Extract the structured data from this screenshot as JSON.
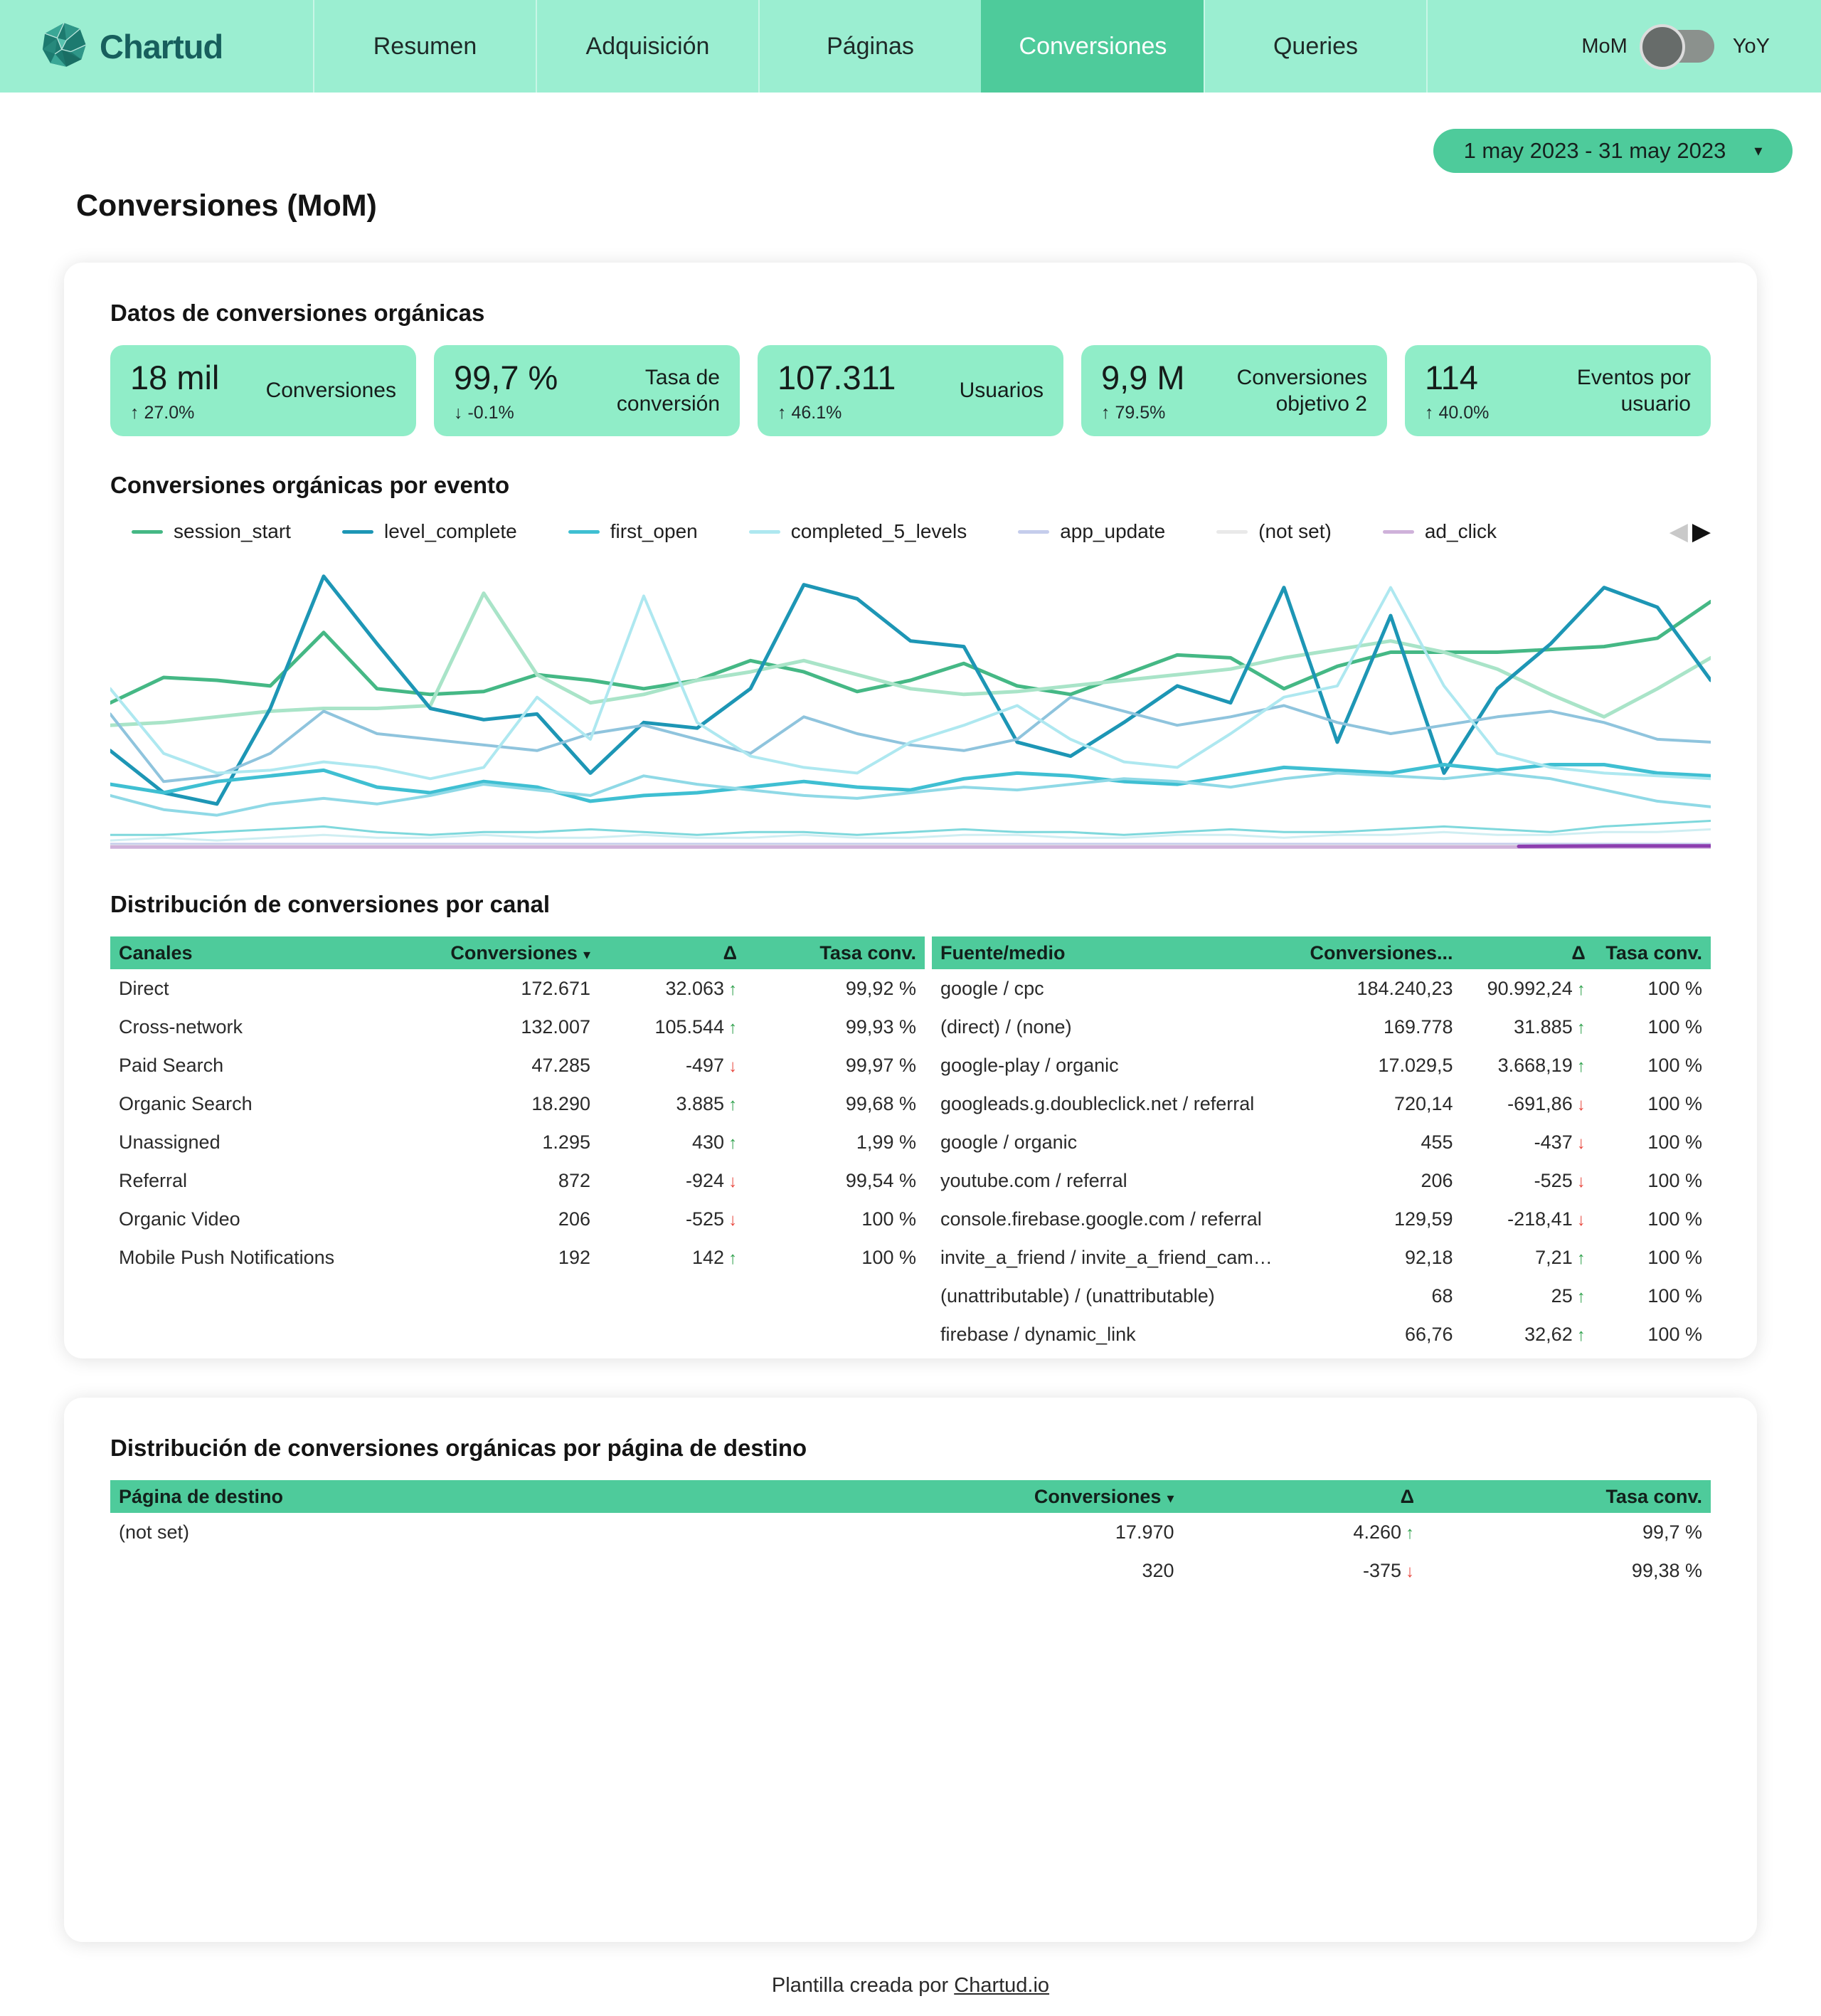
{
  "nav": {
    "brand": "Chartud",
    "tabs": [
      {
        "label": "Resumen",
        "active": false
      },
      {
        "label": "Adquisición",
        "active": false
      },
      {
        "label": "Páginas",
        "active": false
      },
      {
        "label": "Conversiones",
        "active": true
      },
      {
        "label": "Queries",
        "active": false
      }
    ],
    "toggle": {
      "left_label": "MoM",
      "right_label": "YoY",
      "selected": "MoM"
    }
  },
  "filters": {
    "date_range": "1 may 2023 - 31 may 2023"
  },
  "page_title": "Conversiones (MoM)",
  "sections": {
    "kpi_title": "Datos de conversiones orgánicas",
    "chart_title": "Conversiones orgánicas por evento",
    "channel_title": "Distribución de conversiones por canal",
    "landing_title": "Distribución de conversiones orgánicas por página de destino"
  },
  "kpis": [
    {
      "value": "18 mil",
      "delta": "27.0%",
      "direction": "up",
      "label": "Conversiones"
    },
    {
      "value": "99,7 %",
      "delta": "-0.1%",
      "direction": "down",
      "label": "Tasa de conversión"
    },
    {
      "value": "107.311",
      "delta": "46.1%",
      "direction": "up",
      "label": "Usuarios"
    },
    {
      "value": "9,9 M",
      "delta": "79.5%",
      "direction": "up",
      "label": "Conversiones objetivo 2"
    },
    {
      "value": "114",
      "delta": "40.0%",
      "direction": "up",
      "label": "Eventos por usuario"
    }
  ],
  "chart_data": {
    "type": "line",
    "title": "Conversiones orgánicas por evento",
    "x_description": "Días del periodo 1 may 2023 - 31 may 2023 (eje oculto)",
    "grid": false,
    "axes_hidden": true,
    "ylim": [
      0,
      100
    ],
    "legend_position": "top",
    "legend": [
      {
        "label": "session_start",
        "color": "#45b885"
      },
      {
        "label": "level_complete",
        "color": "#1d96b5"
      },
      {
        "label": "first_open",
        "color": "#3fbfd2"
      },
      {
        "label": "completed_5_levels",
        "color": "#aee8f0"
      },
      {
        "label": "app_update",
        "color": "#c5cdec"
      },
      {
        "label": "(not set)",
        "color": "#e9e9e9"
      },
      {
        "label": "ad_click",
        "color": "#cfb2da"
      }
    ],
    "series": [
      {
        "name": "session_start",
        "color": "#45b885",
        "width": 5,
        "values": [
          52,
          61,
          60,
          58,
          77,
          57,
          55,
          56,
          62,
          60,
          57,
          60,
          67,
          63,
          56,
          60,
          66,
          58,
          55,
          62,
          69,
          68,
          57,
          65,
          70,
          70,
          70,
          71,
          72,
          75,
          88
        ]
      },
      {
        "name": "session_start (prev)",
        "color": "#a9e4c8",
        "width": 5,
        "values": [
          44,
          45,
          47,
          49,
          50,
          50,
          51,
          91,
          62,
          52,
          55,
          60,
          63,
          67,
          62,
          57,
          55,
          56,
          58,
          60,
          62,
          64,
          68,
          71,
          74,
          70,
          64,
          55,
          47,
          57,
          68
        ]
      },
      {
        "name": "level_complete",
        "color": "#1d96b5",
        "width": 5,
        "values": [
          35,
          20,
          16,
          50,
          97,
          73,
          50,
          46,
          48,
          27,
          45,
          43,
          57,
          94,
          89,
          74,
          72,
          38,
          33,
          45,
          58,
          52,
          93,
          38,
          83,
          27,
          57,
          73,
          93,
          86,
          60
        ]
      },
      {
        "name": "level_complete (prev)",
        "color": "#8fc4dd",
        "width": 4,
        "values": [
          48,
          24,
          26,
          34,
          49,
          41,
          39,
          37,
          35,
          41,
          44,
          39,
          34,
          47,
          41,
          37,
          35,
          39,
          54,
          49,
          44,
          47,
          51,
          45,
          41,
          44,
          47,
          49,
          45,
          39,
          38
        ]
      },
      {
        "name": "first_open",
        "color": "#3fbfd2",
        "width": 5,
        "values": [
          23,
          20,
          24,
          26,
          28,
          22,
          20,
          24,
          22,
          17,
          19,
          20,
          22,
          24,
          22,
          21,
          25,
          27,
          26,
          24,
          23,
          26,
          29,
          28,
          27,
          30,
          28,
          30,
          30,
          27,
          26
        ]
      },
      {
        "name": "first_open (prev)",
        "color": "#8fd9e6",
        "width": 4,
        "values": [
          19,
          14,
          12,
          16,
          18,
          16,
          19,
          23,
          21,
          19,
          26,
          23,
          21,
          19,
          18,
          20,
          22,
          21,
          23,
          25,
          24,
          22,
          25,
          27,
          26,
          25,
          27,
          25,
          21,
          17,
          15
        ]
      },
      {
        "name": "completed_5_levels",
        "color": "#aee8f0",
        "width": 4,
        "values": [
          57,
          34,
          27,
          28,
          31,
          29,
          25,
          29,
          54,
          39,
          90,
          45,
          33,
          29,
          27,
          38,
          44,
          51,
          39,
          31,
          29,
          41,
          54,
          58,
          93,
          58,
          34,
          29,
          27,
          26,
          25
        ]
      },
      {
        "name": "completed_5_levels (prev)",
        "color": "#7fd8dc",
        "width": 3,
        "values": [
          5,
          5,
          6,
          7,
          8,
          6,
          5,
          6,
          6,
          7,
          6,
          5,
          6,
          6,
          5,
          6,
          7,
          6,
          6,
          5,
          6,
          7,
          6,
          6,
          7,
          8,
          7,
          6,
          8,
          9,
          10
        ]
      },
      {
        "name": "otros_eventos",
        "color": "#cfeef2",
        "width": 3,
        "values": [
          3,
          4,
          3,
          4,
          5,
          4,
          4,
          5,
          4,
          4,
          5,
          4,
          4,
          5,
          4,
          4,
          5,
          5,
          4,
          4,
          5,
          5,
          4,
          5,
          5,
          6,
          5,
          5,
          6,
          6,
          7
        ]
      },
      {
        "name": "app_update",
        "color": "#c5cdec",
        "width": 3,
        "values": [
          1.8,
          1.8
        ]
      },
      {
        "name": "(not set)",
        "color": "#e9e9e9",
        "width": 3,
        "values": [
          1.2,
          1.2
        ]
      },
      {
        "name": "ad_click",
        "color": "#cfb2da",
        "width": 5,
        "values": [
          0.7,
          0.7
        ]
      },
      {
        "name": "ad_click (final)",
        "color": "#8d3daf",
        "width": 5,
        "span": [
          0.88,
          1.0
        ],
        "values": [
          0.9,
          1.1,
          1.1
        ]
      }
    ],
    "pager": {
      "prev_enabled": false,
      "next_enabled": true
    }
  },
  "channel_table": {
    "headers": [
      "Canales",
      "Conversiones",
      "Δ",
      "Tasa conv."
    ],
    "sort_col": 1,
    "rows": [
      {
        "name": "Direct",
        "conversions": "172.671",
        "delta": "32.063",
        "dir": "up",
        "rate": "99,92 %"
      },
      {
        "name": "Cross-network",
        "conversions": "132.007",
        "delta": "105.544",
        "dir": "up",
        "rate": "99,93 %"
      },
      {
        "name": "Paid Search",
        "conversions": "47.285",
        "delta": "-497",
        "dir": "down",
        "rate": "99,97 %"
      },
      {
        "name": "Organic Search",
        "conversions": "18.290",
        "delta": "3.885",
        "dir": "up",
        "rate": "99,68 %"
      },
      {
        "name": "Unassigned",
        "conversions": "1.295",
        "delta": "430",
        "dir": "up",
        "rate": "1,99 %"
      },
      {
        "name": "Referral",
        "conversions": "872",
        "delta": "-924",
        "dir": "down",
        "rate": "99,54 %"
      },
      {
        "name": "Organic Video",
        "conversions": "206",
        "delta": "-525",
        "dir": "down",
        "rate": "100 %"
      },
      {
        "name": "Mobile Push Notifications",
        "conversions": "192",
        "delta": "142",
        "dir": "up",
        "rate": "100 %"
      }
    ]
  },
  "source_table": {
    "headers": [
      "Fuente/medio",
      "Conversiones...",
      "Δ",
      "Tasa conv."
    ],
    "sort_col": -1,
    "rows": [
      {
        "name": "google / cpc",
        "conversions": "184.240,23",
        "delta": "90.992,24",
        "dir": "up",
        "rate": "100 %"
      },
      {
        "name": "(direct) / (none)",
        "conversions": "169.778",
        "delta": "31.885",
        "dir": "up",
        "rate": "100 %"
      },
      {
        "name": "google-play / organic",
        "conversions": "17.029,5",
        "delta": "3.668,19",
        "dir": "up",
        "rate": "100 %"
      },
      {
        "name": "googleads.g.doubleclick.net / referral",
        "conversions": "720,14",
        "delta": "-691,86",
        "dir": "down",
        "rate": "100 %"
      },
      {
        "name": "google / organic",
        "conversions": "455",
        "delta": "-437",
        "dir": "down",
        "rate": "100 %"
      },
      {
        "name": "youtube.com / referral",
        "conversions": "206",
        "delta": "-525",
        "dir": "down",
        "rate": "100 %"
      },
      {
        "name": "console.firebase.google.com / referral",
        "conversions": "129,59",
        "delta": "-218,41",
        "dir": "down",
        "rate": "100 %"
      },
      {
        "name": "invite_a_friend / invite_a_friend_campai...",
        "conversions": "92,18",
        "delta": "7,21",
        "dir": "up",
        "rate": "100 %"
      },
      {
        "name": "(unattributable) / (unattributable)",
        "conversions": "68",
        "delta": "25",
        "dir": "up",
        "rate": "100 %"
      },
      {
        "name": "firebase / dynamic_link",
        "conversions": "66,76",
        "delta": "32,62",
        "dir": "up",
        "rate": "100 %"
      }
    ]
  },
  "landing_table": {
    "headers": [
      "Página de destino",
      "Conversiones",
      "Δ",
      "Tasa conv."
    ],
    "sort_col": 1,
    "rows": [
      {
        "name": "(not set)",
        "conversions": "17.970",
        "delta": "4.260",
        "dir": "up",
        "rate": "99,7 %"
      },
      {
        "name": "",
        "conversions": "320",
        "delta": "-375",
        "dir": "down",
        "rate": "99,38 %"
      }
    ]
  },
  "footer": {
    "text": "Plantilla creada por ",
    "link_label": "Chartud.io"
  },
  "colors": {
    "nav_bg": "#9beed1",
    "accent_green": "#4ecb9b",
    "kpi_card_bg": "#90edc8",
    "brand_text": "#175f5d",
    "up": "#2fa14c",
    "down": "#e8453c",
    "toggle_gray": "#8b918d",
    "ad_click_peak": "#8d3daf"
  }
}
